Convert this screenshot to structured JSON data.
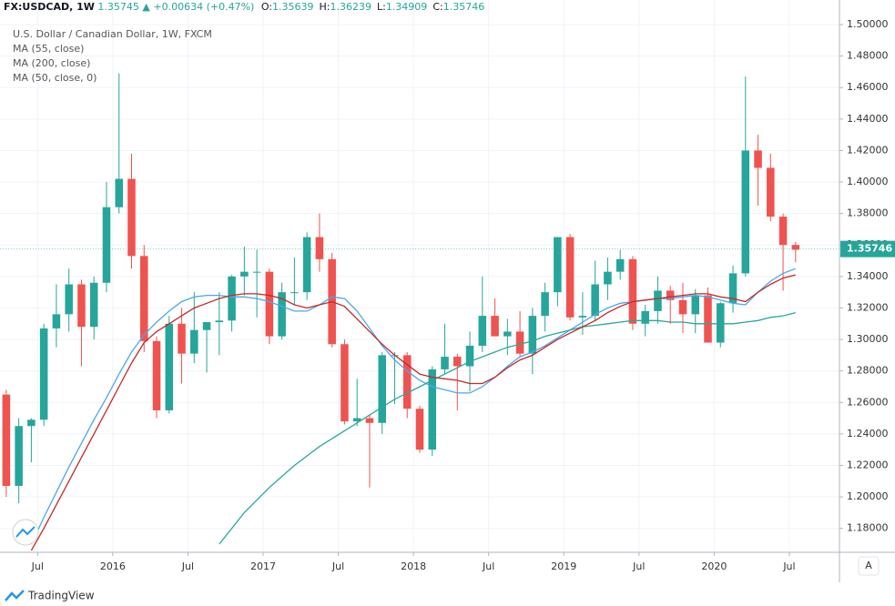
{
  "chart_data": {
    "type": "candlestick",
    "header": {
      "symbol": "FX:USDCAD, 1W",
      "price": "1.35745",
      "change": "▲ +0.00634 (+0.47%)",
      "ohlc": [
        {
          "label": "O:",
          "value": "1.35639"
        },
        {
          "label": "H:",
          "value": "1.36239"
        },
        {
          "label": "L:",
          "value": "1.34909"
        },
        {
          "label": "C:",
          "value": "1.35746"
        }
      ]
    },
    "title": "U.S. Dollar / Canadian Dollar, 1W, FXCM",
    "up_color": "#26a69a",
    "down_color": "#ef5350",
    "x": [
      "2015-04",
      "2015-05",
      "2015-06",
      "2015-07",
      "2015-08",
      "2015-09",
      "2015-10",
      "2015-11",
      "2015-12",
      "2016-01",
      "2016-02",
      "2016-03",
      "2016-04",
      "2016-05",
      "2016-06",
      "2016-07",
      "2016-08",
      "2016-09",
      "2016-10",
      "2016-11",
      "2016-12",
      "2017-01",
      "2017-02",
      "2017-03",
      "2017-04",
      "2017-05",
      "2017-06",
      "2017-07",
      "2017-08",
      "2017-09",
      "2017-10",
      "2017-11",
      "2017-12",
      "2018-01",
      "2018-02",
      "2018-03",
      "2018-04",
      "2018-05",
      "2018-06",
      "2018-07",
      "2018-08",
      "2018-09",
      "2018-10",
      "2018-11",
      "2018-12",
      "2019-01",
      "2019-02",
      "2019-03",
      "2019-04",
      "2019-05",
      "2019-06",
      "2019-07",
      "2019-08",
      "2019-09",
      "2019-10",
      "2019-11",
      "2019-12",
      "2020-01",
      "2020-02",
      "2020-03",
      "2020-04",
      "2020-05",
      "2020-06",
      "2020-07"
    ],
    "open": [
      1.265,
      1.207,
      1.245,
      1.249,
      1.307,
      1.316,
      1.335,
      1.308,
      1.336,
      1.384,
      1.402,
      1.353,
      1.299,
      1.255,
      1.31,
      1.291,
      1.306,
      1.311,
      1.312,
      1.34,
      1.343,
      1.343,
      1.302,
      1.33,
      1.33,
      1.365,
      1.351,
      1.297,
      1.248,
      1.25,
      1.247,
      1.29,
      1.29,
      1.256,
      1.23,
      1.281,
      1.289,
      1.283,
      1.296,
      1.315,
      1.302,
      1.305,
      1.291,
      1.315,
      1.33,
      1.365,
      1.314,
      1.315,
      1.335,
      1.343,
      1.351,
      1.31,
      1.318,
      1.331,
      1.325,
      1.316,
      1.328,
      1.298,
      1.323,
      1.342,
      1.42,
      1.409,
      1.378,
      1.36
    ],
    "high": [
      1.268,
      1.25,
      1.25,
      1.31,
      1.335,
      1.345,
      1.338,
      1.34,
      1.4,
      1.469,
      1.418,
      1.36,
      1.302,
      1.315,
      1.32,
      1.33,
      1.31,
      1.33,
      1.341,
      1.359,
      1.357,
      1.345,
      1.336,
      1.352,
      1.368,
      1.38,
      1.355,
      1.3,
      1.275,
      1.252,
      1.292,
      1.292,
      1.292,
      1.258,
      1.283,
      1.31,
      1.291,
      1.305,
      1.34,
      1.326,
      1.313,
      1.318,
      1.32,
      1.336,
      1.365,
      1.367,
      1.33,
      1.35,
      1.352,
      1.357,
      1.353,
      1.322,
      1.34,
      1.334,
      1.336,
      1.332,
      1.333,
      1.324,
      1.347,
      1.467,
      1.43,
      1.418,
      1.38,
      1.362
    ],
    "low": [
      1.2,
      1.196,
      1.222,
      1.245,
      1.295,
      1.305,
      1.283,
      1.3,
      1.33,
      1.38,
      1.345,
      1.292,
      1.25,
      1.253,
      1.272,
      1.285,
      1.279,
      1.29,
      1.305,
      1.328,
      1.314,
      1.297,
      1.3,
      1.322,
      1.325,
      1.343,
      1.295,
      1.246,
      1.245,
      1.206,
      1.24,
      1.259,
      1.25,
      1.228,
      1.226,
      1.278,
      1.255,
      1.267,
      1.292,
      1.302,
      1.29,
      1.289,
      1.278,
      1.305,
      1.321,
      1.312,
      1.303,
      1.312,
      1.325,
      1.338,
      1.306,
      1.302,
      1.31,
      1.31,
      1.304,
      1.304,
      1.298,
      1.295,
      1.317,
      1.34,
      1.385,
      1.375,
      1.331,
      1.349
    ],
    "close": [
      1.207,
      1.245,
      1.249,
      1.307,
      1.316,
      1.335,
      1.308,
      1.336,
      1.384,
      1.402,
      1.353,
      1.299,
      1.255,
      1.31,
      1.291,
      1.306,
      1.311,
      1.312,
      1.34,
      1.343,
      1.343,
      1.302,
      1.33,
      1.33,
      1.365,
      1.351,
      1.297,
      1.248,
      1.25,
      1.247,
      1.29,
      1.29,
      1.256,
      1.23,
      1.281,
      1.289,
      1.283,
      1.296,
      1.315,
      1.302,
      1.305,
      1.291,
      1.315,
      1.33,
      1.365,
      1.314,
      1.315,
      1.335,
      1.343,
      1.351,
      1.31,
      1.318,
      1.331,
      1.325,
      1.316,
      1.328,
      1.298,
      1.323,
      1.342,
      1.42,
      1.409,
      1.378,
      1.36,
      1.357
    ],
    "series": [
      {
        "name": "MA (55, close)",
        "color": "#4aa8ec",
        "values": [
          null,
          null,
          1.17,
          1.187,
          1.203,
          1.219,
          1.234,
          1.249,
          1.263,
          1.278,
          1.292,
          1.303,
          1.311,
          1.318,
          1.324,
          1.327,
          1.328,
          1.328,
          1.327,
          1.327,
          1.326,
          1.324,
          1.321,
          1.318,
          1.318,
          1.322,
          1.327,
          1.326,
          1.318,
          1.307,
          1.296,
          1.287,
          1.28,
          1.274,
          1.27,
          1.268,
          1.266,
          1.266,
          1.27,
          1.276,
          1.283,
          1.289,
          1.292,
          1.296,
          1.301,
          1.306,
          1.311,
          1.316,
          1.32,
          1.323,
          1.324,
          1.325,
          1.326,
          1.326,
          1.327,
          1.328,
          1.327,
          1.325,
          1.323,
          1.322,
          1.33,
          1.337,
          1.342,
          1.345
        ]
      },
      {
        "name": "MA (200, close)",
        "color": "#2aa79b",
        "values": [
          null,
          null,
          null,
          null,
          null,
          null,
          null,
          null,
          null,
          null,
          null,
          null,
          null,
          null,
          null,
          null,
          null,
          1.17,
          1.18,
          1.19,
          1.198,
          1.206,
          1.213,
          1.22,
          1.226,
          1.232,
          1.237,
          1.242,
          1.247,
          1.252,
          1.257,
          1.262,
          1.266,
          1.27,
          1.274,
          1.278,
          1.282,
          1.286,
          1.289,
          1.292,
          1.295,
          1.297,
          1.299,
          1.302,
          1.304,
          1.306,
          1.308,
          1.309,
          1.31,
          1.311,
          1.312,
          1.312,
          1.312,
          1.311,
          1.311,
          1.31,
          1.31,
          1.31,
          1.31,
          1.311,
          1.312,
          1.314,
          1.315,
          1.317
        ]
      },
      {
        "name": "MA (50, close, 0)",
        "color": "#c62828",
        "values": [
          null,
          null,
          1.166,
          1.18,
          1.195,
          1.21,
          1.225,
          1.24,
          1.255,
          1.27,
          1.285,
          1.298,
          1.305,
          1.31,
          1.315,
          1.32,
          1.323,
          1.326,
          1.328,
          1.329,
          1.329,
          1.328,
          1.326,
          1.322,
          1.32,
          1.322,
          1.324,
          1.321,
          1.313,
          1.305,
          1.297,
          1.29,
          1.284,
          1.278,
          1.276,
          1.275,
          1.274,
          1.272,
          1.272,
          1.276,
          1.282,
          1.287,
          1.29,
          1.295,
          1.3,
          1.304,
          1.308,
          1.312,
          1.317,
          1.321,
          1.324,
          1.325,
          1.326,
          1.327,
          1.328,
          1.329,
          1.329,
          1.327,
          1.326,
          1.324,
          1.33,
          1.335,
          1.339,
          1.341
        ]
      }
    ],
    "xlim": [
      "2015-04",
      "2020-11"
    ],
    "xticks": [
      {
        "value": "2015-07",
        "label": "Jul"
      },
      {
        "value": "2016-01",
        "label": "2016"
      },
      {
        "value": "2016-07",
        "label": "Jul"
      },
      {
        "value": "2017-01",
        "label": "2017"
      },
      {
        "value": "2017-07",
        "label": "Jul"
      },
      {
        "value": "2018-01",
        "label": "2018"
      },
      {
        "value": "2018-07",
        "label": "Jul"
      },
      {
        "value": "2019-01",
        "label": "2019"
      },
      {
        "value": "2019-07",
        "label": "Jul"
      },
      {
        "value": "2020-01",
        "label": "2020"
      },
      {
        "value": "2020-07",
        "label": "Jul"
      }
    ],
    "ylim": [
      1.1648,
      1.5156
    ],
    "yticks": [
      {
        "value": 1.18,
        "label": "1.18000"
      },
      {
        "value": 1.2,
        "label": "1.20000"
      },
      {
        "value": 1.22,
        "label": "1.22000"
      },
      {
        "value": 1.24,
        "label": "1.24000"
      },
      {
        "value": 1.26,
        "label": "1.26000"
      },
      {
        "value": 1.28,
        "label": "1.28000"
      },
      {
        "value": 1.3,
        "label": "1.30000"
      },
      {
        "value": 1.32,
        "label": "1.32000"
      },
      {
        "value": 1.34,
        "label": "1.34000"
      },
      {
        "value": 1.36,
        "label": "1.36000"
      },
      {
        "value": 1.38,
        "label": "1.38000"
      },
      {
        "value": 1.4,
        "label": "1.40000"
      },
      {
        "value": 1.42,
        "label": "1.42000"
      },
      {
        "value": 1.44,
        "label": "1.44000"
      },
      {
        "value": 1.46,
        "label": "1.46000"
      },
      {
        "value": 1.48,
        "label": "1.48000"
      },
      {
        "value": 1.5,
        "label": "1.50000"
      }
    ],
    "last_price": {
      "value": 1.35746,
      "label": "1.35746"
    },
    "grid": true,
    "scale_button": "A",
    "brand": "TradingView"
  }
}
